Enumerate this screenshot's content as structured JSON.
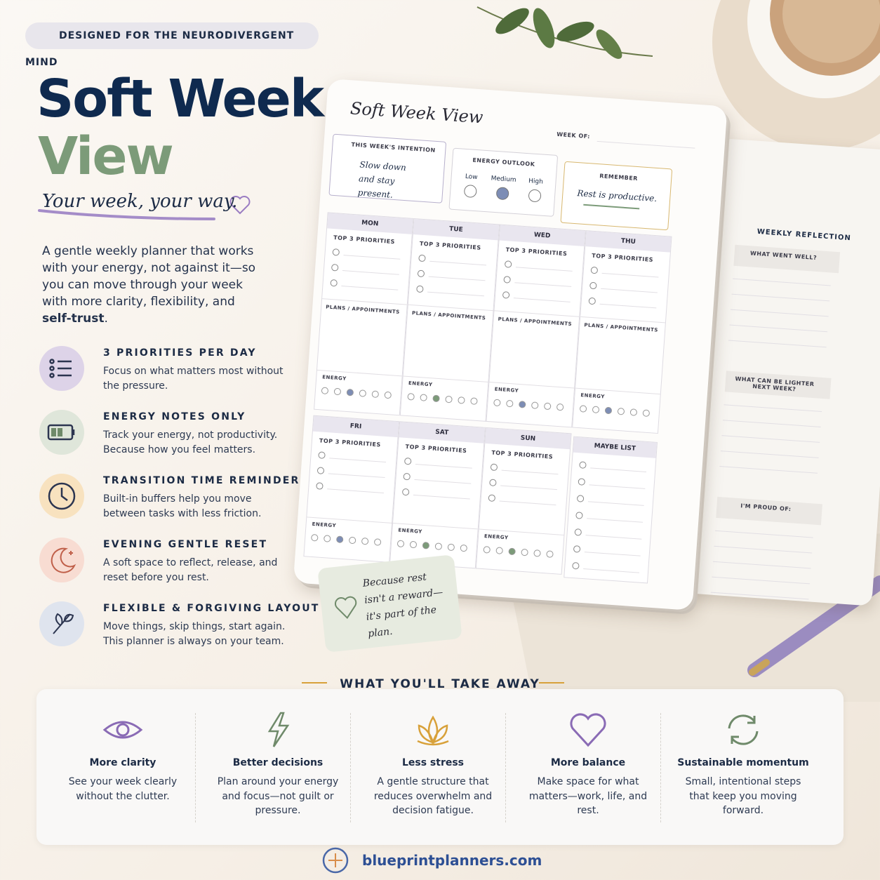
{
  "badge": "DESIGNED FOR THE NEURODIVERGENT MIND",
  "title": {
    "line1": "Soft Week",
    "line2": "View"
  },
  "tagline": "Your week, your way.",
  "intro": {
    "text": "A gentle weekly planner that works with your energy, not against it—so you can move through your week with more clarity, flexibility, and ",
    "bold": "self-trust",
    "end": "."
  },
  "features": [
    {
      "title": "3 PRIORITIES PER DAY",
      "text": "Focus on what matters most without the pressure."
    },
    {
      "title": "ENERGY NOTES ONLY",
      "text": "Track your energy, not productivity. Because how you feel matters."
    },
    {
      "title": "TRANSITION TIME REMINDERS",
      "text": "Built-in buffers help you move between tasks with less friction."
    },
    {
      "title": "EVENING GENTLE RESET",
      "text": "A soft space to reflect, release, and reset before you rest."
    },
    {
      "title": "FLEXIBLE & FORGIVING LAYOUT",
      "text": "Move things, skip things, start again. This planner is always on your team."
    }
  ],
  "planner": {
    "title": "Soft Week View",
    "week_of": "WEEK OF:",
    "intention": {
      "label": "THIS WEEK'S INTENTION",
      "text": "Slow down and stay present."
    },
    "energy_outlook": {
      "label": "ENERGY OUTLOOK",
      "levels": [
        "Low",
        "Medium",
        "High"
      ]
    },
    "remember": {
      "label": "REMEMBER",
      "text": "Rest is productive."
    },
    "days": [
      "MON",
      "TUE",
      "WED",
      "THU",
      "FRI",
      "SAT",
      "SUN"
    ],
    "priorities_label": "TOP 3 PRIORITIES",
    "plans_label": "PLANS / APPOINTMENTS",
    "energy_label": "ENERGY",
    "maybe_list": "MAYBE LIST"
  },
  "reflection": {
    "title": "WEEKLY REFLECTION",
    "prompts": [
      "WHAT WENT WELL?",
      "WHAT CAN BE LIGHTER NEXT WEEK?",
      "I'M PROUD OF:"
    ]
  },
  "note": "Because rest isn't a reward—it's part of the plan.",
  "takeaways": {
    "heading": "WHAT YOU'LL TAKE AWAY",
    "items": [
      {
        "title": "More clarity",
        "text": "See your week clearly without the clutter."
      },
      {
        "title": "Better decisions",
        "text": "Plan around your energy and focus—not guilt or pressure."
      },
      {
        "title": "Less stress",
        "text": "A gentle structure that reduces overwhelm and decision fatigue."
      },
      {
        "title": "More balance",
        "text": "Make space for what matters—work, life, and rest."
      },
      {
        "title": "Sustainable momentum",
        "text": "Small, intentional steps that keep you moving forward."
      }
    ]
  },
  "footer": "blueprintplanners.com"
}
